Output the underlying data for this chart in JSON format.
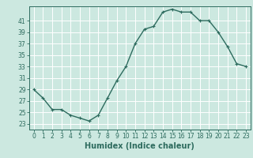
{
  "x": [
    0,
    1,
    2,
    3,
    4,
    5,
    6,
    7,
    8,
    9,
    10,
    11,
    12,
    13,
    14,
    15,
    16,
    17,
    18,
    19,
    20,
    21,
    22,
    23
  ],
  "y": [
    29,
    27.5,
    25.5,
    25.5,
    24.5,
    24,
    23.5,
    24.5,
    27.5,
    30.5,
    33,
    37,
    39.5,
    40,
    42.5,
    43,
    42.5,
    42.5,
    41,
    41,
    39,
    36.5,
    33.5,
    33
  ],
  "line_color": "#2d6b5e",
  "marker": "+",
  "marker_size": 3,
  "bg_color": "#cce8e0",
  "grid_color": "#ffffff",
  "xlabel": "Humidex (Indice chaleur)",
  "ylim": [
    22,
    43.5
  ],
  "xlim": [
    -0.5,
    23.5
  ],
  "yticks": [
    23,
    25,
    27,
    29,
    31,
    33,
    35,
    37,
    39,
    41
  ],
  "xticks": [
    0,
    1,
    2,
    3,
    4,
    5,
    6,
    7,
    8,
    9,
    10,
    11,
    12,
    13,
    14,
    15,
    16,
    17,
    18,
    19,
    20,
    21,
    22,
    23
  ],
  "tick_label_size": 5.5,
  "xlabel_size": 7,
  "line_width": 1.0
}
